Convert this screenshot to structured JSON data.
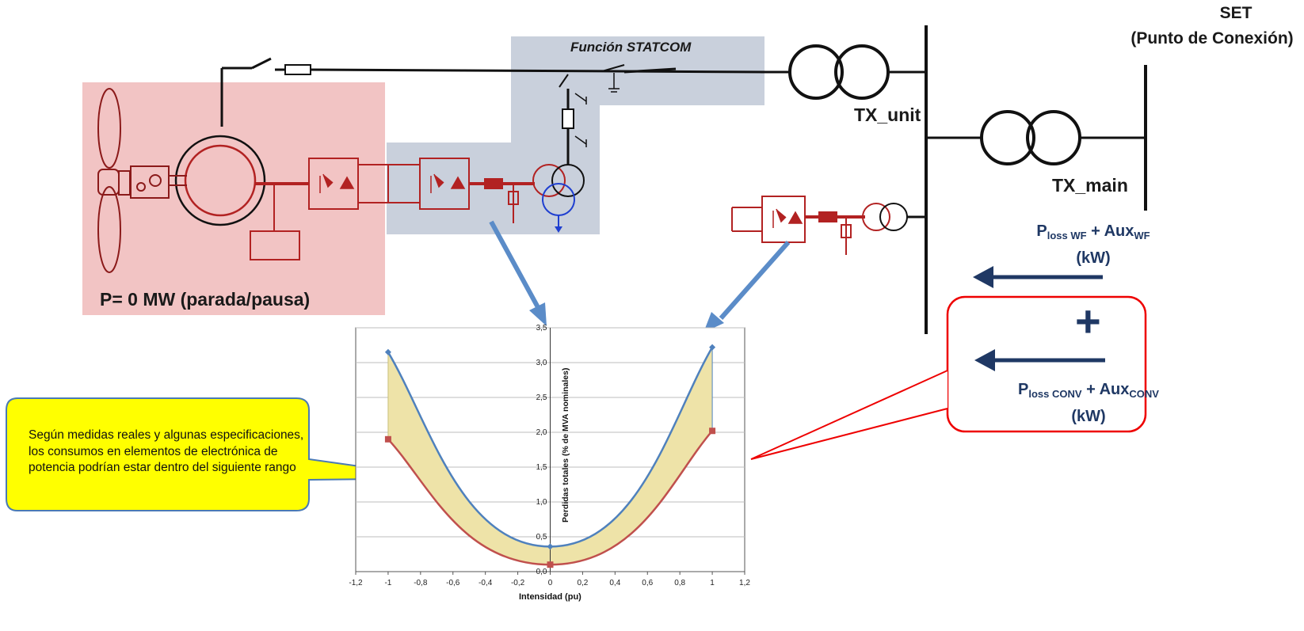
{
  "labels": {
    "set_title": "SET",
    "set_subtitle": "(Punto de Conexión)",
    "tx_unit": "TX_unit",
    "tx_main": "TX_main",
    "statcom": "Función STATCOM",
    "power_state": "P= 0 MW (parada/pausa)",
    "loss_wf": {
      "p": "P",
      "p_sub": "loss WF",
      "plus": " + Aux",
      "aux_sub": "WF",
      "unit": "(kW)"
    },
    "loss_conv": {
      "p": "P",
      "p_sub": "loss CONV",
      "plus": " + Aux",
      "aux_sub": "CONV",
      "unit": "(kW)"
    },
    "plus_sign": "+",
    "callout": "Según medidas reales y algunas especificaciones, los consumos en elementos de electrónica de potencia podrían estar dentro del siguiente rango"
  },
  "colors": {
    "red_zone": "#f2c4c4",
    "grey_zone": "#c9d0dc",
    "dark_red": "#b22222",
    "blue_arrow": "#5b8cc8",
    "navy": "#1f3864",
    "callout_fill": "#ffff00",
    "series_upper": "#4f81bd",
    "series_lower": "#c0504d",
    "band_fill": "#eee3a8"
  },
  "chart_data": {
    "type": "line",
    "xlabel": "Intensidad (pu)",
    "ylabel": "Perdidas totales (% de MVA nominales)",
    "xlim": [
      -1.2,
      1.2
    ],
    "ylim": [
      0,
      3.5
    ],
    "x_ticks": [
      "-1,2",
      "-1",
      "-0,8",
      "-0,6",
      "-0,4",
      "-0,2",
      "0",
      "0,2",
      "0,4",
      "0,6",
      "0,8",
      "1",
      "1,2"
    ],
    "y_ticks": [
      "0,0",
      "0,5",
      "1,0",
      "1,5",
      "2,0",
      "2,5",
      "3,0",
      "3,5"
    ],
    "grid": true,
    "series": [
      {
        "x": [
          -1,
          0,
          1
        ],
        "y": [
          3.15,
          0.36,
          3.22
        ]
      },
      {
        "x": [
          -1,
          0,
          1
        ],
        "y": [
          1.9,
          0.1,
          2.02
        ]
      }
    ]
  }
}
